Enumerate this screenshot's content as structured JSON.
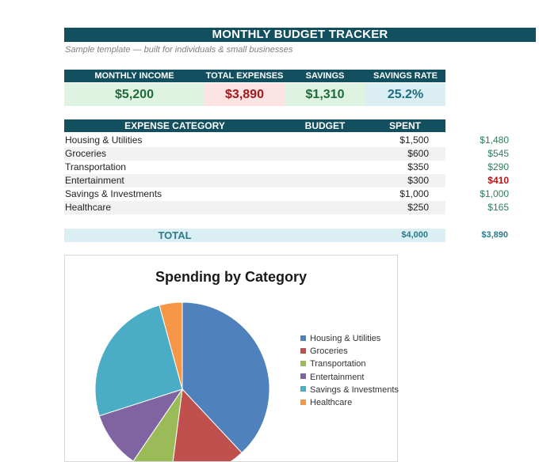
{
  "header": {
    "title": "MONTHLY BUDGET TRACKER",
    "subtitle": "Sample template — built for individuals & small businesses"
  },
  "summary": [
    {
      "label": "MONTHLY INCOME",
      "value": "$5,200",
      "color": "#1f6b3a",
      "bg": "#dff3e3"
    },
    {
      "label": "TOTAL EXPENSES",
      "value": "$3,890",
      "color": "#a11a1a",
      "bg": "#fde4e4"
    },
    {
      "label": "SAVINGS",
      "value": "$1,310",
      "color": "#1f6b3a",
      "bg": "#dff3e3"
    },
    {
      "label": "SAVINGS RATE",
      "value": "25.2%",
      "color": "#1d6e80",
      "bg": "#daeef3"
    }
  ],
  "expenses": {
    "headers": {
      "category": "EXPENSE CATEGORY",
      "budget": "BUDGET",
      "spent": "SPENT"
    },
    "rows": [
      {
        "category": "Housing & Utilities",
        "budget": "$1,500",
        "spent": "$1,480",
        "over": false
      },
      {
        "category": "Groceries",
        "budget": "$600",
        "spent": "$545",
        "over": false
      },
      {
        "category": "Transportation",
        "budget": "$350",
        "spent": "$290",
        "over": false
      },
      {
        "category": "Entertainment",
        "budget": "$300",
        "spent": "$410",
        "over": true
      },
      {
        "category": "Savings & Investments",
        "budget": "$1,000",
        "spent": "$1,000",
        "over": false
      },
      {
        "category": "Healthcare",
        "budget": "$250",
        "spent": "$165",
        "over": false
      }
    ],
    "total": {
      "label": "TOTAL",
      "budget": "$4,000",
      "spent": "$3,890"
    }
  },
  "chart_data": {
    "type": "pie",
    "title": "Spending by Category",
    "legend": "right",
    "categories": [
      "Housing & Utilities",
      "Groceries",
      "Transportation",
      "Entertainment",
      "Savings & Investments",
      "Healthcare"
    ],
    "values": [
      1480,
      545,
      290,
      410,
      1000,
      165
    ],
    "colors": [
      "#4f81bd",
      "#c0504d",
      "#9bbb59",
      "#8064a2",
      "#4bacc6",
      "#f79646"
    ]
  }
}
